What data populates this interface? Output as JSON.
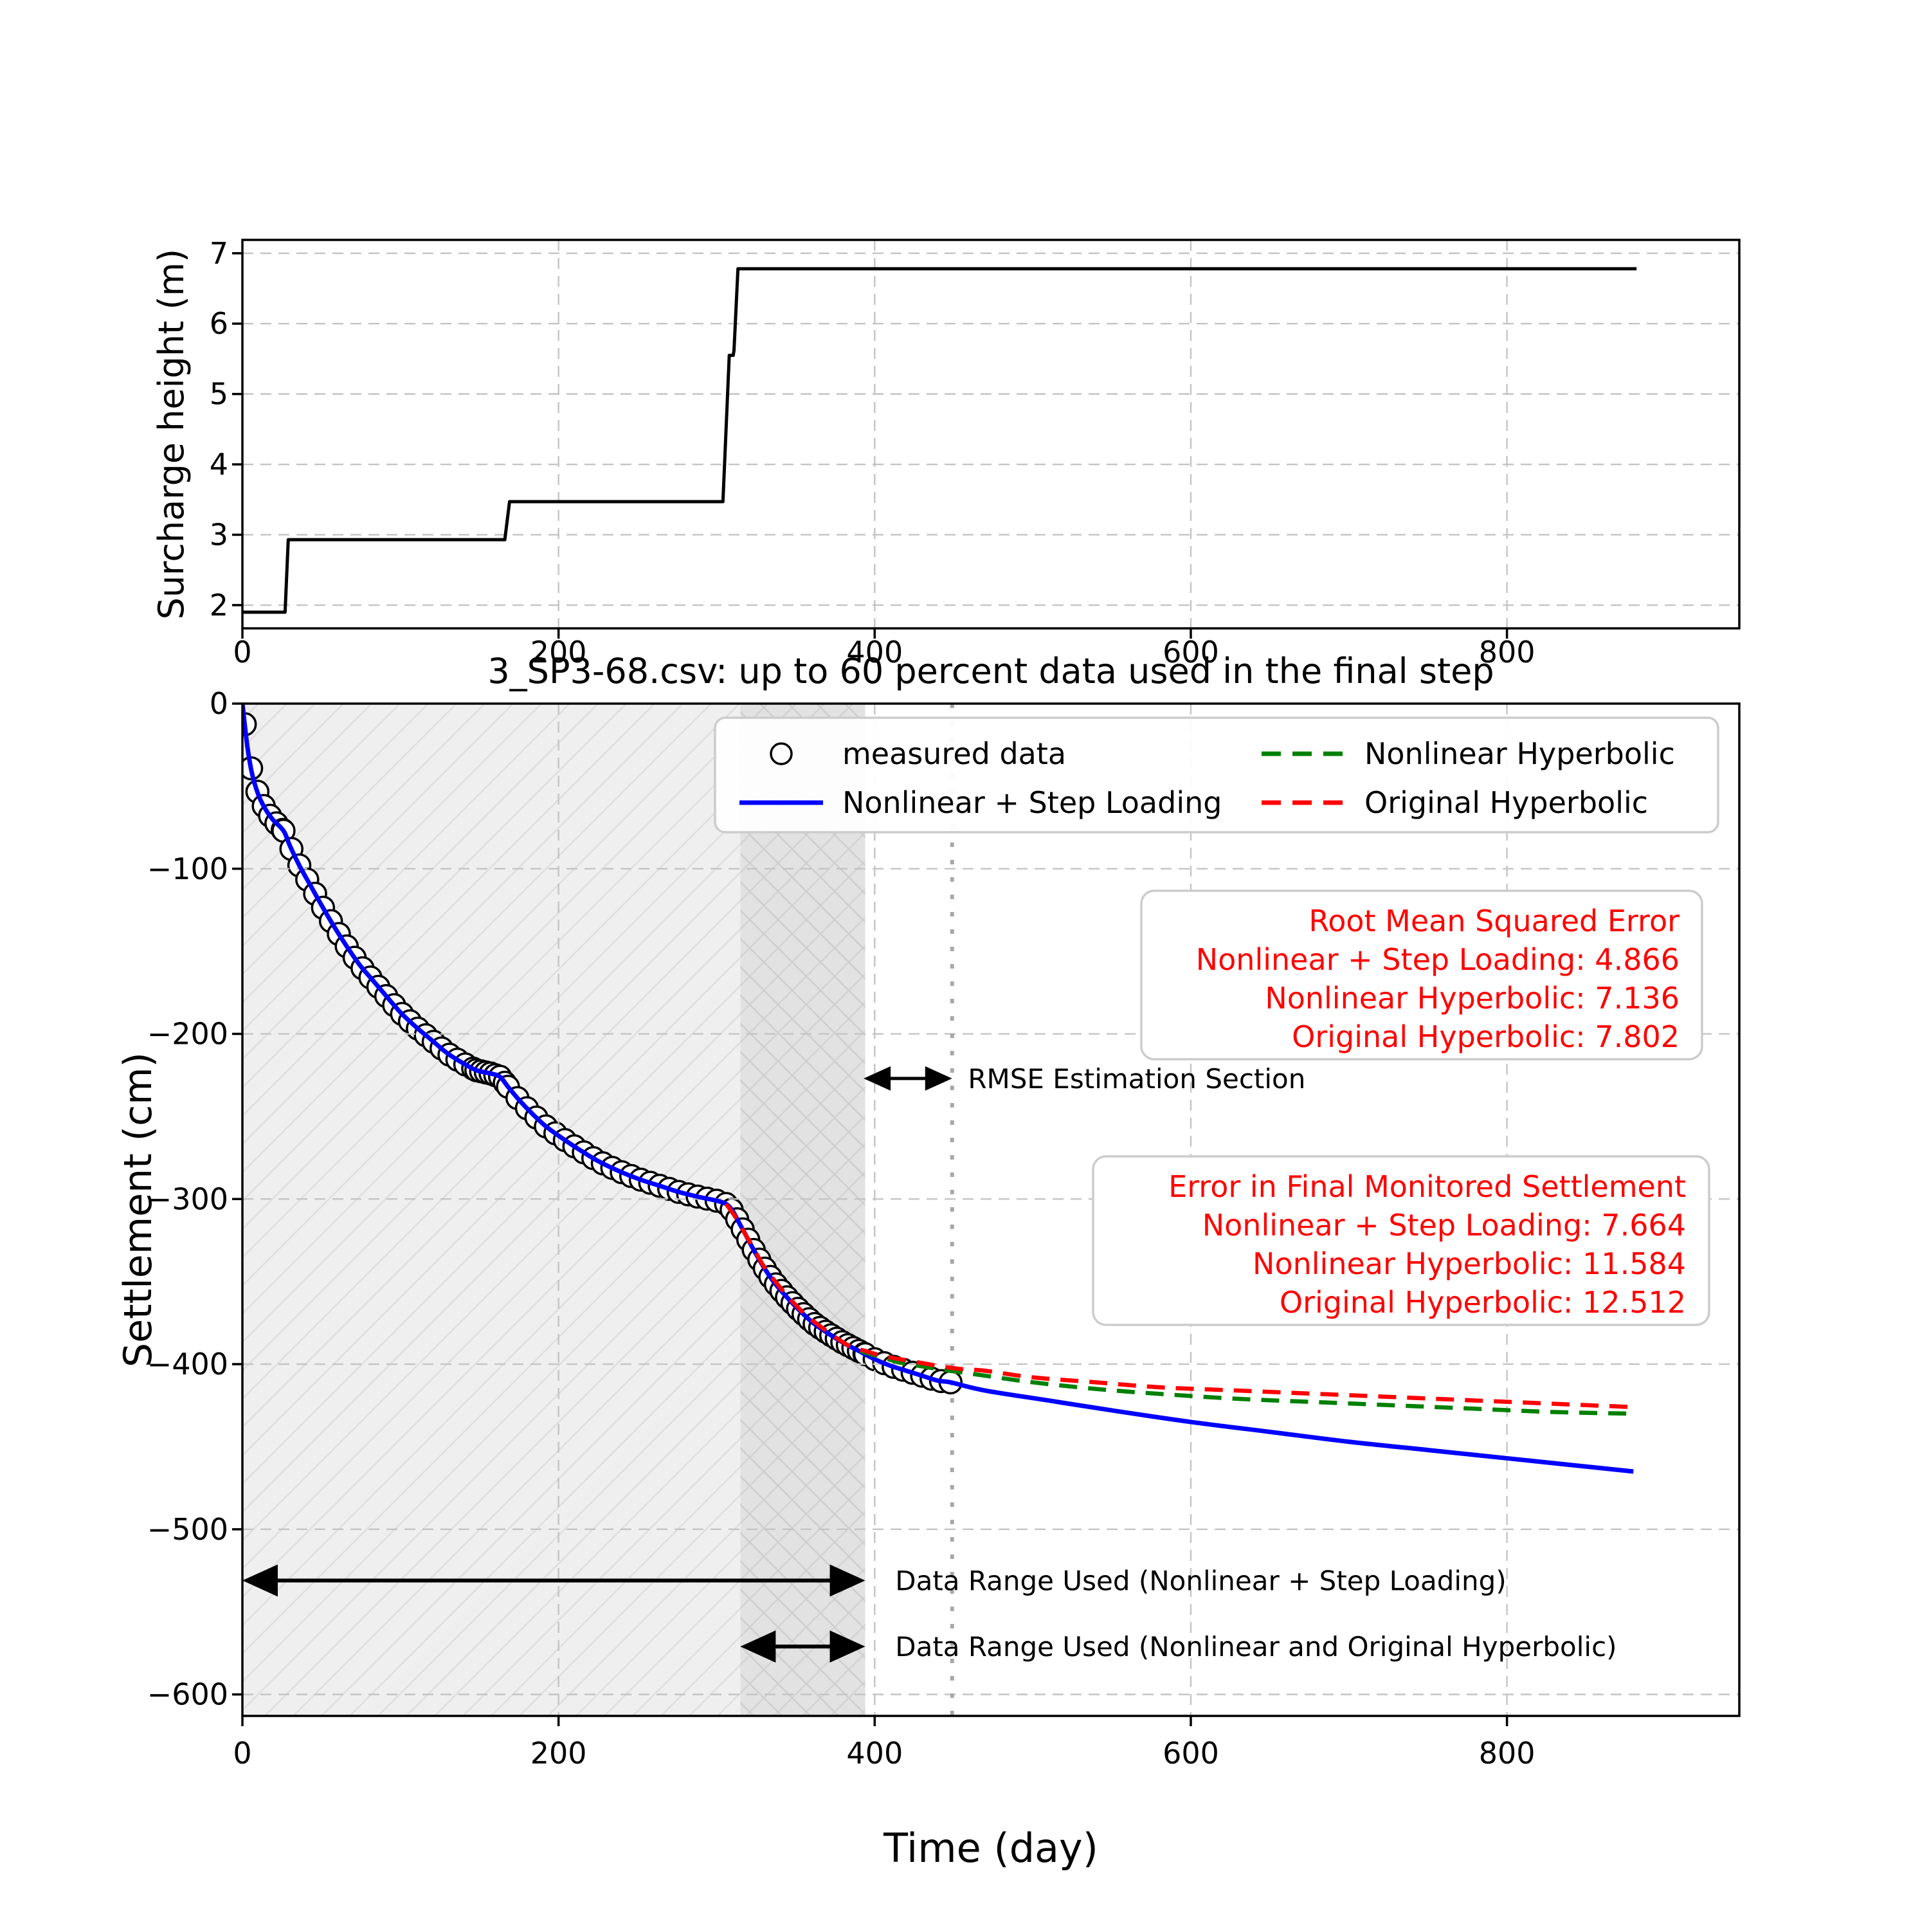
{
  "chart_data": [
    {
      "type": "line",
      "title": "",
      "xlabel": "",
      "ylabel": "Surcharge height (m)",
      "xlim": [
        0,
        947
      ],
      "ylim": [
        1.67,
        7.19
      ],
      "grid": true,
      "legend_position": "none",
      "xticks": [
        {
          "v": 0,
          "label": "0"
        },
        {
          "v": 200,
          "label": "200"
        },
        {
          "v": 400,
          "label": "400"
        },
        {
          "v": 600,
          "label": "600"
        },
        {
          "v": 800,
          "label": "800"
        }
      ],
      "yticks": [
        {
          "v": 2,
          "label": "2"
        },
        {
          "v": 3,
          "label": "3"
        },
        {
          "v": 4,
          "label": "4"
        },
        {
          "v": 5,
          "label": "5"
        },
        {
          "v": 6,
          "label": "6"
        },
        {
          "v": 7,
          "label": "7"
        }
      ],
      "series": [
        {
          "name": "Surcharge height",
          "color": "#000000",
          "style": "solid",
          "width": 5,
          "points": [
            [
              0,
              1.9
            ],
            [
              27,
              1.9
            ],
            [
              29,
              2.93
            ],
            [
              166,
              2.93
            ],
            [
              169,
              3.47
            ],
            [
              304,
              3.47
            ],
            [
              308,
              5.55
            ],
            [
              310.5,
              5.55
            ],
            [
              311,
              5.62
            ],
            [
              313.5,
              6.78
            ],
            [
              882,
              6.78
            ]
          ]
        }
      ]
    },
    {
      "type": "scatter+line",
      "title": "3_SP3-68.csv: up to 60 percent data used in the final step",
      "xlabel": "Time (day)",
      "ylabel": "Settlement (cm)",
      "xlim": [
        0,
        947
      ],
      "ylim": [
        -613,
        0
      ],
      "grid": true,
      "legend_position": "upper center, 2 columns",
      "xticks": [
        {
          "v": 0,
          "label": "0"
        },
        {
          "v": 200,
          "label": "200"
        },
        {
          "v": 400,
          "label": "400"
        },
        {
          "v": 600,
          "label": "600"
        },
        {
          "v": 800,
          "label": "800"
        }
      ],
      "yticks": [
        {
          "v": 0,
          "label": "0"
        },
        {
          "v": -100,
          "label": "−100"
        },
        {
          "v": -200,
          "label": "−200"
        },
        {
          "v": -300,
          "label": "−300"
        },
        {
          "v": -400,
          "label": "−400"
        },
        {
          "v": -500,
          "label": "−500"
        },
        {
          "v": -600,
          "label": "−600"
        }
      ],
      "measured": {
        "label": "measured data",
        "marker": "circle",
        "color": "#000000",
        "anchors": [
          [
            0,
            0
          ],
          [
            3,
            -25
          ],
          [
            6,
            -42
          ],
          [
            10,
            -55
          ],
          [
            14,
            -63
          ],
          [
            19,
            -70
          ],
          [
            26,
            -77
          ],
          [
            30,
            -86
          ],
          [
            36,
            -98
          ],
          [
            43,
            -110
          ],
          [
            50,
            -122
          ],
          [
            58,
            -135
          ],
          [
            66,
            -147
          ],
          [
            74,
            -158
          ],
          [
            82,
            -167
          ],
          [
            90,
            -176
          ],
          [
            100,
            -187
          ],
          [
            110,
            -196
          ],
          [
            120,
            -204
          ],
          [
            130,
            -212
          ],
          [
            140,
            -218
          ],
          [
            148,
            -222
          ],
          [
            157,
            -224
          ],
          [
            163,
            -226
          ],
          [
            168,
            -232
          ],
          [
            175,
            -240
          ],
          [
            183,
            -248
          ],
          [
            192,
            -256
          ],
          [
            202,
            -263
          ],
          [
            213,
            -270
          ],
          [
            225,
            -277
          ],
          [
            238,
            -283
          ],
          [
            251,
            -288
          ],
          [
            264,
            -292
          ],
          [
            277,
            -296
          ],
          [
            290,
            -299
          ],
          [
            300,
            -301
          ],
          [
            306,
            -303
          ],
          [
            310,
            -307
          ],
          [
            314,
            -314
          ],
          [
            318,
            -321
          ],
          [
            323,
            -330
          ],
          [
            329,
            -340
          ],
          [
            336,
            -350
          ],
          [
            344,
            -359
          ],
          [
            352,
            -367
          ],
          [
            361,
            -375
          ],
          [
            370,
            -381
          ],
          [
            380,
            -387
          ],
          [
            390,
            -392
          ],
          [
            400,
            -397
          ],
          [
            410,
            -401
          ],
          [
            420,
            -404
          ],
          [
            430,
            -407
          ],
          [
            440,
            -410
          ],
          [
            448,
            -411
          ]
        ],
        "sample_ranges": [
          [
            1.5,
            26,
            4
          ],
          [
            26,
            148,
            5
          ],
          [
            148,
            168,
            3
          ],
          [
            168,
            306,
            6
          ],
          [
            306,
            394,
            3.5
          ],
          [
            394,
            449,
            6
          ]
        ]
      },
      "series": [
        {
          "name": "Nonlinear + Step Loading",
          "color": "#0000ff",
          "style": "solid",
          "width": 7,
          "follows_measured_until": 448,
          "extension": [
            [
              470,
              -416
            ],
            [
              510,
              -422
            ],
            [
              550,
              -428
            ],
            [
              600,
              -435
            ],
            [
              650,
              -441
            ],
            [
              700,
              -447
            ],
            [
              750,
              -452
            ],
            [
              800,
              -457
            ],
            [
              840,
              -461
            ],
            [
              880,
              -465
            ]
          ]
        },
        {
          "name": "Nonlinear Hyperbolic",
          "color": "#008000",
          "style": "dashed",
          "width": 6.5,
          "points": [
            [
              306,
              -303
            ],
            [
              312,
              -311
            ],
            [
              318,
              -321
            ],
            [
              324,
              -331
            ],
            [
              330,
              -341
            ],
            [
              338,
              -351
            ],
            [
              346,
              -360
            ],
            [
              355,
              -369
            ],
            [
              364,
              -376
            ],
            [
              374,
              -383
            ],
            [
              384,
              -389
            ],
            [
              394,
              -393
            ],
            [
              405,
              -396
            ],
            [
              416,
              -399
            ],
            [
              428,
              -401
            ],
            [
              440,
              -403
            ],
            [
              455,
              -405
            ],
            [
              470,
              -407
            ],
            [
              500,
              -411
            ],
            [
              540,
              -415
            ],
            [
              580,
              -418
            ],
            [
              630,
              -421
            ],
            [
              680,
              -423
            ],
            [
              730,
              -425
            ],
            [
              780,
              -427
            ],
            [
              830,
              -429
            ],
            [
              880,
              -430
            ]
          ]
        },
        {
          "name": "Original Hyperbolic",
          "color": "#ff0000",
          "style": "dashed",
          "width": 6.5,
          "points": [
            [
              306,
              -303
            ],
            [
              312,
              -311
            ],
            [
              318,
              -321
            ],
            [
              324,
              -331
            ],
            [
              330,
              -341
            ],
            [
              338,
              -351
            ],
            [
              346,
              -360
            ],
            [
              355,
              -369
            ],
            [
              364,
              -376
            ],
            [
              374,
              -383
            ],
            [
              384,
              -389
            ],
            [
              394,
              -392
            ],
            [
              405,
              -395
            ],
            [
              416,
              -397
            ],
            [
              428,
              -399
            ],
            [
              440,
              -401
            ],
            [
              455,
              -403
            ],
            [
              470,
              -404
            ],
            [
              500,
              -408
            ],
            [
              540,
              -411
            ],
            [
              580,
              -414
            ],
            [
              630,
              -416
            ],
            [
              680,
              -418
            ],
            [
              730,
              -420
            ],
            [
              780,
              -422
            ],
            [
              830,
              -424
            ],
            [
              880,
              -426
            ]
          ]
        }
      ],
      "regions": [
        {
          "from": 0,
          "to": 394,
          "hatch": "/",
          "fill": "#efefef"
        },
        {
          "from": 315,
          "to": 394,
          "hatch": "\\",
          "fill": "rgba(0,0,0,0.05)"
        }
      ],
      "vline": {
        "x": 449,
        "style": "dotted",
        "color": "#a8a8a8"
      },
      "legend": {
        "entries": [
          {
            "label": "measured data",
            "type": "marker",
            "color": "#000000"
          },
          {
            "label": "Nonlinear + Step Loading",
            "type": "solid",
            "color": "#0000ff"
          },
          {
            "label": "Nonlinear Hyperbolic",
            "type": "dashed",
            "color": "#008000"
          },
          {
            "label": "Original Hyperbolic",
            "type": "dashed",
            "color": "#ff0000"
          }
        ]
      },
      "rmse_box": {
        "text_color": "#ff0000",
        "lines": [
          "Root Mean Squared Error",
          "Nonlinear + Step Loading: 4.866",
          "Nonlinear Hyperbolic: 7.136",
          "Original Hyperbolic: 7.802"
        ]
      },
      "error_box": {
        "text_color": "#ff0000",
        "lines": [
          "Error in Final Monitored Settlement",
          "Nonlinear + Step Loading: 7.664",
          "Nonlinear Hyperbolic: 11.584",
          "Original Hyperbolic: 12.512"
        ]
      },
      "annotations": [
        {
          "label": "RMSE Estimation Section",
          "arrow": {
            "x1": 393,
            "x2": 449,
            "y": -227
          },
          "label_x": 459
        },
        {
          "label": "Data Range Used (Nonlinear + Step Loading)",
          "arrow": {
            "x1": 0,
            "x2": 394,
            "y": -531
          },
          "label_x": 413
        },
        {
          "label": "Data Range Used (Nonlinear and Original Hyperbolic)",
          "arrow": {
            "x1": 315,
            "x2": 394,
            "y": -571
          },
          "label_x": 413
        }
      ]
    }
  ],
  "style": {
    "background": "#ffffff",
    "spine_color": "#000000",
    "grid_color": "#c4c4c4",
    "hatch_color": "#dfdfdf",
    "hatch_color_dark": "#cfcfcf",
    "box_border_color": "#cccccc",
    "annotation_color": "#000000"
  }
}
